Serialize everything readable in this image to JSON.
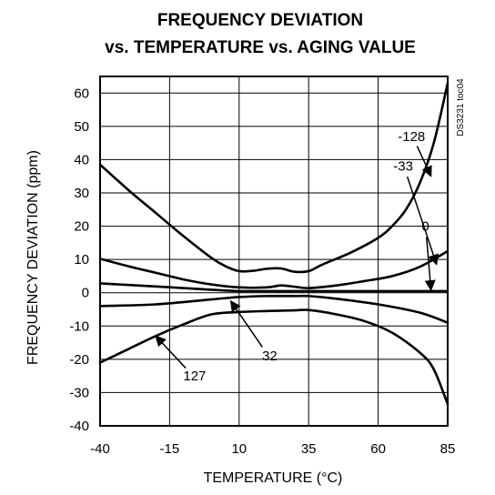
{
  "chart_data": {
    "type": "line",
    "title": "FREQUENCY DEVIATION",
    "subtitle": "vs. TEMPERATURE vs. AGING VALUE",
    "xlabel": "TEMPERATURE (°C)",
    "ylabel": "FREQUENCY DEVIATION (ppm)",
    "side_code": "DS3231 toc04",
    "xlim": [
      -40,
      85
    ],
    "ylim": [
      -40,
      65
    ],
    "xticks": [
      -40,
      -15,
      10,
      35,
      60,
      85
    ],
    "yticks": [
      -40,
      -30,
      -20,
      -10,
      0,
      10,
      20,
      30,
      40,
      50,
      60
    ],
    "grid": true,
    "series": [
      {
        "name": "-128",
        "x": [
          -40,
          -30,
          -20,
          -10,
          0,
          5,
          10,
          15,
          20,
          25,
          30,
          35,
          40,
          50,
          60,
          65,
          70,
          75,
          80,
          85
        ],
        "values": [
          38.5,
          31,
          24,
          17,
          10.5,
          8,
          6.5,
          6.6,
          7.2,
          7.3,
          6.3,
          6.5,
          8.5,
          12,
          16.5,
          20,
          25,
          33,
          45,
          63
        ]
      },
      {
        "name": "-33",
        "x": [
          -40,
          -30,
          -20,
          -10,
          0,
          10,
          20,
          25,
          30,
          35,
          45,
          55,
          65,
          75,
          85
        ],
        "values": [
          10.2,
          8,
          6,
          4,
          2.5,
          1.6,
          1.6,
          2.2,
          1.8,
          1.4,
          2.2,
          3.5,
          5,
          7.8,
          12.5
        ]
      },
      {
        "name": "0",
        "x": [
          -40,
          -20,
          0,
          10,
          20,
          30,
          40,
          60,
          75,
          85
        ],
        "values": [
          2.8,
          1.9,
          0.9,
          0.5,
          0.5,
          0.5,
          0.5,
          0.5,
          0.5,
          0.5
        ]
      },
      {
        "name": "32",
        "x": [
          -40,
          -20,
          0,
          10,
          20,
          30,
          35,
          45,
          60,
          75,
          85
        ],
        "values": [
          -4,
          -3.5,
          -2,
          -1.3,
          -1,
          -1,
          -1,
          -1.8,
          -3.5,
          -6,
          -9
        ]
      },
      {
        "name": "127",
        "x": [
          -40,
          -30,
          -20,
          -10,
          0,
          10,
          20,
          30,
          35,
          45,
          55,
          65,
          75,
          80,
          85
        ],
        "values": [
          -21,
          -17,
          -13,
          -9.5,
          -6.5,
          -5.8,
          -5.5,
          -5.3,
          -5.2,
          -6.5,
          -8.5,
          -12,
          -18,
          -23,
          -33.5
        ]
      }
    ],
    "annotations": [
      {
        "text": "-128",
        "series": "-128",
        "label_x": 72,
        "label_y": 47,
        "arrow_x": 79,
        "arrow_y": 35
      },
      {
        "text": "-33",
        "series": "-33",
        "label_x": 69,
        "label_y": 38,
        "arrow_x": 81,
        "arrow_y": 8.5
      },
      {
        "text": "0",
        "series": "0",
        "label_x": 77,
        "label_y": 20,
        "arrow_x": 79,
        "arrow_y": 0.8
      },
      {
        "text": "32",
        "series": "32",
        "label_x": 21,
        "label_y": -19,
        "arrow_x": 7,
        "arrow_y": -2.5
      },
      {
        "text": "127",
        "series": "127",
        "label_x": -6,
        "label_y": -25,
        "arrow_x": -20,
        "arrow_y": -13
      }
    ]
  }
}
